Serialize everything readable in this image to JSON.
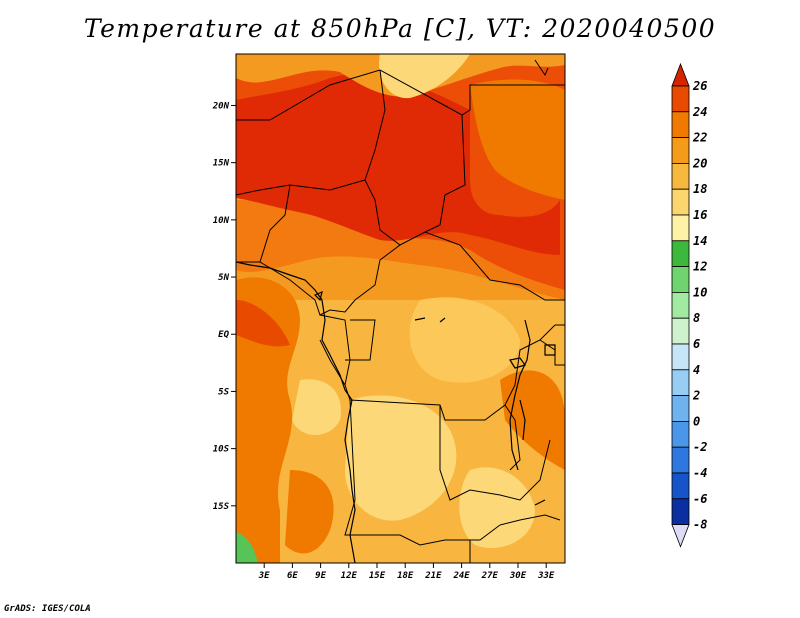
{
  "title": "Temperature at 850hPa [C], VT: 2020040500",
  "credit": "GrADS: IGES/COLA",
  "map": {
    "projection": "latlon",
    "lon_range": [
      0,
      35
    ],
    "lat_range": [
      -20,
      24.5
    ],
    "lon_ticks": [
      "3E",
      "6E",
      "9E",
      "12E",
      "15E",
      "18E",
      "21E",
      "24E",
      "27E",
      "30E",
      "33E"
    ],
    "lat_ticks": [
      "20N",
      "15N",
      "10N",
      "5N",
      "EQ",
      "5S",
      "10S",
      "15S"
    ]
  },
  "colorbar": {
    "labels": [
      "26",
      "24",
      "22",
      "20",
      "18",
      "16",
      "14",
      "12",
      "10",
      "8",
      "6",
      "4",
      "2",
      "0",
      "-2",
      "-4",
      "-6",
      "-8"
    ],
    "colors": [
      "#d62400",
      "#e84a00",
      "#f07a00",
      "#f59b1a",
      "#f7b83e",
      "#fbd66e",
      "#fdf2a6",
      "#3cb93c",
      "#6fd46f",
      "#a2eaa2",
      "#cdf2cd",
      "#c6e6f8",
      "#98cef4",
      "#6fb3ee",
      "#4a96e8",
      "#2d77df",
      "#1754c8",
      "#0b2fa0",
      "#07177a",
      "#dcdcf7"
    ]
  },
  "regions": {
    "hot_north": "#e02a05",
    "hot_band": "#ec4e08",
    "warm_orange": "#f27a10",
    "orange_mid": "#f59a20",
    "light_orange": "#f8b640",
    "pale_yellow": "#fdd878",
    "cream": "#fef0b0",
    "green_patch": "#56c456"
  }
}
